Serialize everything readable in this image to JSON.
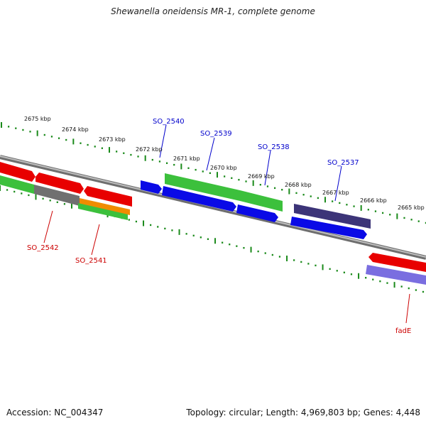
{
  "title": "Shewanella oneidensis MR-1, complete genome",
  "footer": {
    "accession": "Accession: NC_004347",
    "summary": "Topology: circular; Length: 4,969,803 bp; Genes: 4,448"
  },
  "ticks": [
    {
      "label": "2675 kbp"
    },
    {
      "label": "2674 kbp"
    },
    {
      "label": "2673 kbp"
    },
    {
      "label": "2672 kbp"
    },
    {
      "label": "2671 kbp"
    },
    {
      "label": "2670 kbp"
    },
    {
      "label": "2669 kbp"
    },
    {
      "label": "2668 kbp"
    },
    {
      "label": "2667 kbp"
    },
    {
      "label": "2666 kbp"
    },
    {
      "label": "2665 kbp"
    }
  ],
  "gene_labels": [
    {
      "name": "SO_2540",
      "color": "#0000cc"
    },
    {
      "name": "SO_2539",
      "color": "#0000cc"
    },
    {
      "name": "SO_2538",
      "color": "#0000cc"
    },
    {
      "name": "SO_2537",
      "color": "#0000cc"
    },
    {
      "name": "SO_2542",
      "color": "#cc0000"
    },
    {
      "name": "SO_2541",
      "color": "#cc0000"
    },
    {
      "name": "fadE",
      "color": "#cc0000"
    }
  ],
  "colors": {
    "red": "#e80000",
    "green": "#3cc03c",
    "blue": "#0a0ae6",
    "orange": "#f08c00",
    "gray": "#707070",
    "navy": "#3c3478",
    "lavender": "#7a6ee0",
    "tick": "#1a8a1a",
    "backbone": "#888888"
  }
}
